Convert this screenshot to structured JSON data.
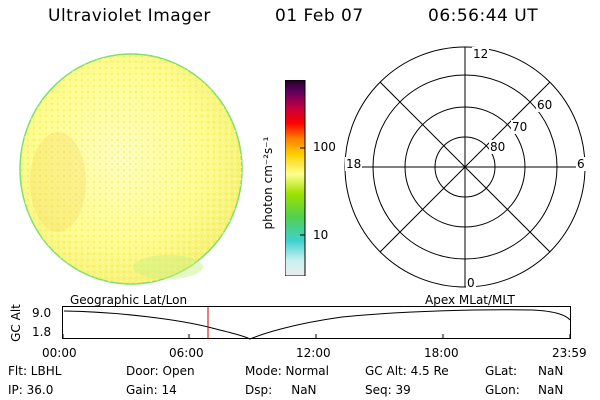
{
  "header": {
    "title": "Ultraviolet Imager",
    "date": "01 Feb 07",
    "time": "06:56:44 UT"
  },
  "colorbar": {
    "label": "photon cm⁻²s⁻¹",
    "ticks": [
      "100",
      "10"
    ],
    "colors": [
      "#e6e6e6",
      "#c8f0f0",
      "#40d0d0",
      "#50d050",
      "#a0e000",
      "#ffff80",
      "#ffd000",
      "#ff8000",
      "#ff0000",
      "#c00040",
      "#600060",
      "#200020"
    ]
  },
  "polar": {
    "mlt_labels": [
      "12",
      "18",
      "6",
      "0"
    ],
    "lat_labels": [
      "60",
      "70",
      "80"
    ]
  },
  "timeline": {
    "left_title": "Geographic Lat/Lon",
    "right_title": "Apex MLat/MLT",
    "axis_label": "GC Alt",
    "y_ticks": [
      "9.0",
      "1.8"
    ],
    "x_ticks": [
      "00:00",
      "06:00",
      "12:00",
      "18:00",
      "23:59"
    ],
    "current_time_color": "#cc0000"
  },
  "info": {
    "col1": [
      "Flt: LBHL",
      "IP: 36.0"
    ],
    "col2": [
      "Door: Open",
      "Gain: 14"
    ],
    "col3": [
      "Mode: Normal",
      "Dsp:     NaN"
    ],
    "col4": [
      "GC Alt: 4.5 Re",
      "Seq: 39"
    ],
    "col5": [
      "GLat:",
      "GLon:"
    ],
    "col6": [
      "NaN",
      "NaN"
    ]
  }
}
